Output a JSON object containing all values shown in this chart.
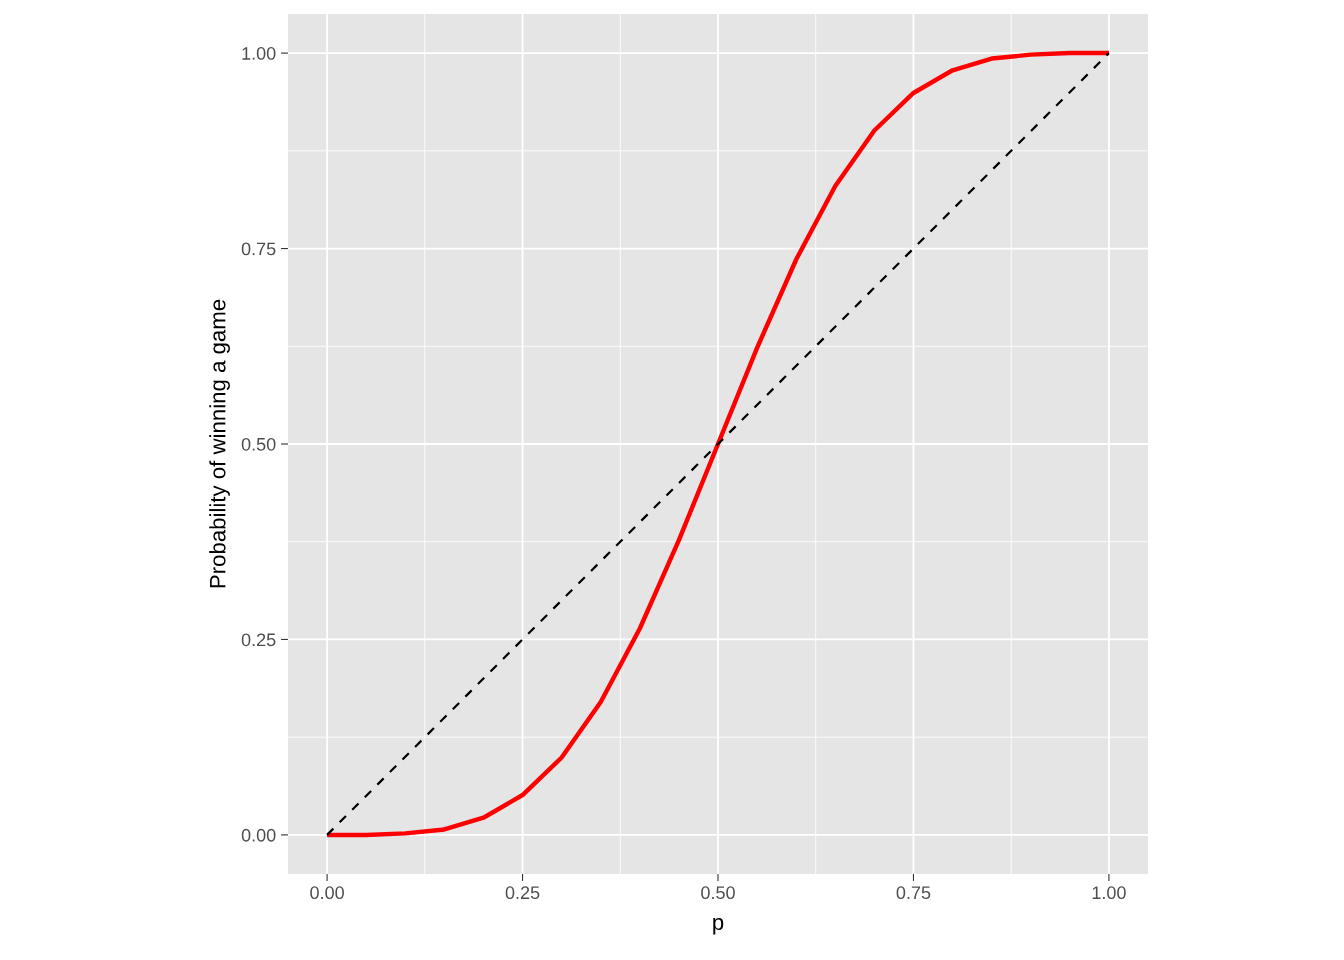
{
  "chart_data": {
    "type": "line",
    "xlabel": "p",
    "ylabel": "Probability of winning a game",
    "xlim": [
      -0.05,
      1.05
    ],
    "ylim": [
      -0.05,
      1.05
    ],
    "xticks": [
      {
        "value": 0,
        "label": "0.00"
      },
      {
        "value": 0.25,
        "label": "0.25"
      },
      {
        "value": 0.5,
        "label": "0.50"
      },
      {
        "value": 0.75,
        "label": "0.75"
      },
      {
        "value": 1,
        "label": "1.00"
      }
    ],
    "yticks": [
      {
        "value": 0,
        "label": "0.00"
      },
      {
        "value": 0.25,
        "label": "0.25"
      },
      {
        "value": 0.5,
        "label": "0.50"
      },
      {
        "value": 0.75,
        "label": "0.75"
      },
      {
        "value": 1,
        "label": "1.00"
      }
    ],
    "grid": true,
    "series": [
      {
        "color": "#ff0000",
        "line_style": "solid",
        "x": [
          0,
          0.05,
          0.1,
          0.15,
          0.2,
          0.25,
          0.3,
          0.35,
          0.4,
          0.45,
          0.5,
          0.55,
          0.6,
          0.65,
          0.7,
          0.75,
          0.8,
          0.85,
          0.9,
          0.95,
          1
        ],
        "values": [
          0,
          0,
          0.002,
          0.007,
          0.022,
          0.051,
          0.099,
          0.17,
          0.264,
          0.377,
          0.5,
          0.623,
          0.736,
          0.83,
          0.901,
          0.949,
          0.978,
          0.993,
          0.998,
          1,
          1
        ]
      },
      {
        "color": "#000000",
        "line_style": "dashed",
        "x": [
          0,
          1
        ],
        "values": [
          0,
          1
        ]
      }
    ]
  }
}
